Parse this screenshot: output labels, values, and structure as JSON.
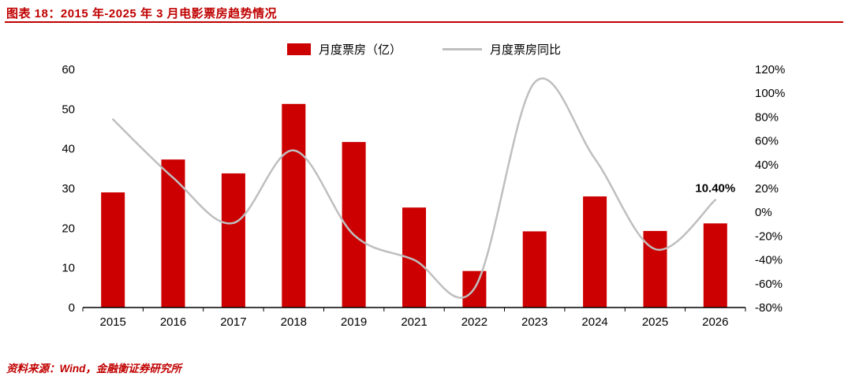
{
  "header": {
    "title": "图表 18：2015 年-2025 年 3 月电影票房趋势情况"
  },
  "legend": {
    "bar_label": "月度票房（亿）",
    "line_label": "月度票房同比"
  },
  "footer": {
    "source": "资料来源：Wind，金融衡证券研究所"
  },
  "colors": {
    "accent_red": "#C00000",
    "bar_red": "#CC0000",
    "line_gray": "#BFBFBF",
    "axis_black": "#000000"
  },
  "chart_data": {
    "type": "bar+line",
    "title": "2015 年-2025 年 3 月电影票房趋势情况",
    "categories": [
      "2015",
      "2016",
      "2017",
      "2018",
      "2019",
      "2021",
      "2022",
      "2023",
      "2024",
      "2025",
      "2026"
    ],
    "series": [
      {
        "name": "月度票房（亿）",
        "type": "bar",
        "axis": "left",
        "values": [
          29.0,
          37.3,
          33.8,
          51.3,
          41.7,
          25.2,
          9.2,
          19.2,
          28.0,
          19.3,
          21.2
        ]
      },
      {
        "name": "月度票房同比",
        "type": "line",
        "axis": "right",
        "values": [
          78,
          29,
          -9,
          52,
          -19,
          -40,
          -64,
          109,
          45,
          -31,
          10.4
        ]
      }
    ],
    "left_axis": {
      "min": 0,
      "max": 60,
      "ticks": [
        0,
        10,
        20,
        30,
        40,
        50,
        60
      ]
    },
    "right_axis": {
      "min": -80,
      "max": 120,
      "ticks": [
        120,
        100,
        80,
        60,
        40,
        20,
        0,
        -20,
        -40,
        -60,
        -80
      ],
      "suffix": "%"
    },
    "annotation": {
      "text": "10.40%",
      "category": "2026"
    },
    "grid": false,
    "legend_position": "top-center"
  }
}
